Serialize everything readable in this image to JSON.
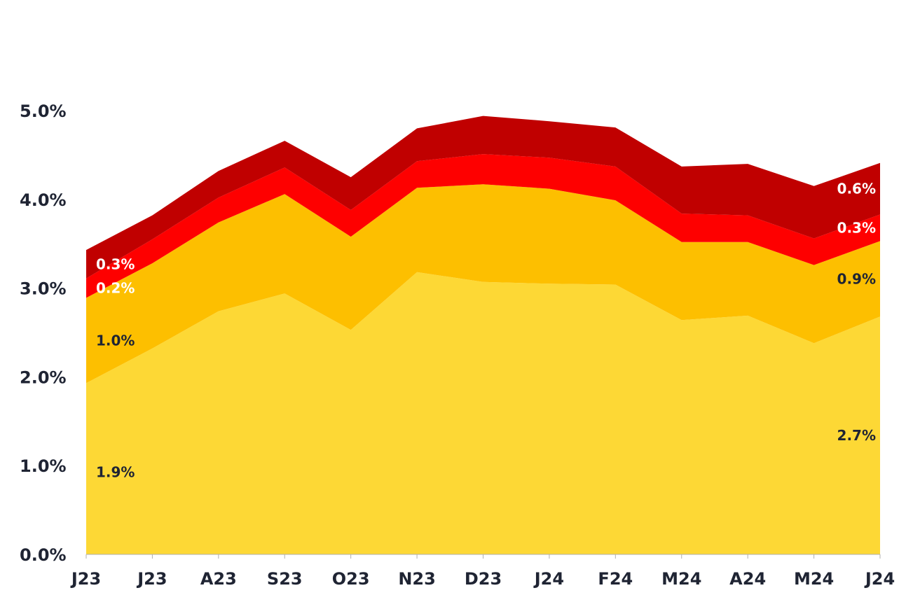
{
  "chart_data": {
    "type": "area",
    "stacked": true,
    "categories": [
      "J23",
      "J23",
      "A23",
      "S23",
      "O23",
      "N23",
      "D23",
      "J24",
      "F24",
      "M24",
      "A24",
      "M24",
      "J24"
    ],
    "ylim": [
      0,
      5.0
    ],
    "yticks": [
      "0.0%",
      "1.0%",
      "2.0%",
      "3.0%",
      "4.0%",
      "5.0%"
    ],
    "grid": false,
    "series": [
      {
        "color": "#fdd835",
        "values": [
          1.93,
          2.32,
          2.74,
          2.94,
          2.53,
          3.18,
          3.07,
          3.05,
          3.04,
          2.64,
          2.69,
          2.38,
          2.68
        ]
      },
      {
        "color": "#fdbf00",
        "values": [
          0.96,
          0.96,
          1.0,
          1.12,
          1.05,
          0.95,
          1.1,
          1.07,
          0.95,
          0.88,
          0.83,
          0.88,
          0.85
        ]
      },
      {
        "color": "#fe0000",
        "values": [
          0.22,
          0.27,
          0.28,
          0.3,
          0.3,
          0.3,
          0.34,
          0.35,
          0.38,
          0.32,
          0.3,
          0.3,
          0.3
        ]
      },
      {
        "color": "#c00000",
        "values": [
          0.32,
          0.27,
          0.3,
          0.3,
          0.37,
          0.37,
          0.43,
          0.41,
          0.44,
          0.53,
          0.58,
          0.59,
          0.58
        ]
      }
    ],
    "annotations": {
      "start": [
        "1.9%",
        "1.0%",
        "0.2%",
        "0.3%"
      ],
      "end": [
        "2.7%",
        "0.9%",
        "0.3%",
        "0.6%"
      ]
    }
  }
}
